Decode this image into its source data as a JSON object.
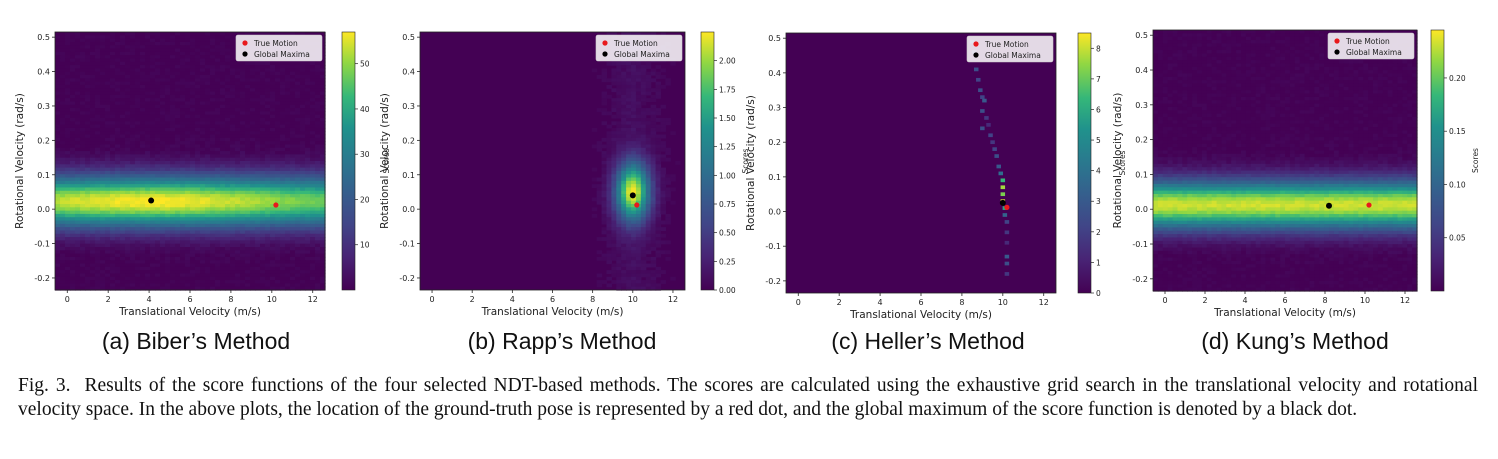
{
  "figure": {
    "number": "Fig. 3.",
    "caption": "Results of the score functions of the four selected NDT-based methods. The scores are calculated using the exhaustive grid search in the translational velocity and rotational velocity space. In the above plots, the location of the ground-truth pose is represented by a red dot, and the global maximum of the score function is denoted by a black dot."
  },
  "colors": {
    "true_motion": "#e8191c",
    "global_maxima": "#000000",
    "colormap": "viridis"
  },
  "chart_data": [
    {
      "type": "heatmap",
      "caption": "(a) Biber’s Method",
      "xlabel": "Translational Velocity (m/s)",
      "ylabel": "Rotational Velocity (rad/s)",
      "xlim": [
        -0.6,
        12.6
      ],
      "ylim": [
        -0.235,
        0.515
      ],
      "xticks": [
        0,
        2,
        4,
        6,
        8,
        10,
        12
      ],
      "yticks": [
        -0.2,
        -0.1,
        0.0,
        0.1,
        0.2,
        0.3,
        0.4,
        0.5
      ],
      "colorbar": {
        "label": "Scores",
        "min": 0,
        "max": 57,
        "ticks": [
          10,
          20,
          30,
          40,
          50
        ]
      },
      "legend": [
        "True Motion",
        "Global Maxima"
      ],
      "true_motion": {
        "x": 10.2,
        "y": 0.012
      },
      "global_maxima": {
        "x": 4.1,
        "y": 0.025
      },
      "pattern": "horizontal band of high scores centered near rotational velocity 0.02 rad/s, decaying with distance from the band"
    },
    {
      "type": "heatmap",
      "caption": "(b) Rapp’s Method",
      "xlabel": "Translational Velocity (m/s)",
      "ylabel": "Rotational Velocity (rad/s)",
      "xlim": [
        -0.6,
        12.6
      ],
      "ylim": [
        -0.235,
        0.515
      ],
      "xticks": [
        0,
        2,
        4,
        6,
        8,
        10,
        12
      ],
      "yticks": [
        -0.2,
        -0.1,
        0.0,
        0.1,
        0.2,
        0.3,
        0.4,
        0.5
      ],
      "colorbar": {
        "label": "Scores",
        "min": 0,
        "max": 2.25,
        "ticks": [
          0.0,
          0.25,
          0.5,
          0.75,
          1.0,
          1.25,
          1.5,
          1.75,
          2.0
        ]
      },
      "legend": [
        "True Motion",
        "Global Maxima"
      ],
      "true_motion": {
        "x": 10.2,
        "y": 0.012
      },
      "global_maxima": {
        "x": 10.0,
        "y": 0.04
      },
      "pattern": "narrow vertical peak near translational velocity 10 m/s and rotational velocity 0.04 rad/s"
    },
    {
      "type": "heatmap",
      "caption": "(c) Heller’s Method",
      "xlabel": "Translational Velocity (m/s)",
      "ylabel": "Rotational Velocity (rad/s)",
      "xlim": [
        -0.6,
        12.6
      ],
      "ylim": [
        -0.235,
        0.515
      ],
      "xticks": [
        0,
        2,
        4,
        6,
        8,
        10,
        12
      ],
      "yticks": [
        -0.2,
        -0.1,
        0.0,
        0.1,
        0.2,
        0.3,
        0.4,
        0.5
      ],
      "colorbar": {
        "label": "Scores",
        "min": 0,
        "max": 8.5,
        "ticks": [
          0,
          1,
          2,
          3,
          4,
          5,
          6,
          7,
          8
        ]
      },
      "legend": [
        "True Motion",
        "Global Maxima"
      ],
      "true_motion": {
        "x": 10.2,
        "y": 0.012
      },
      "global_maxima": {
        "x": 10.0,
        "y": 0.025
      },
      "pattern": "sparse thin vertical streak of cells between translational velocity 8.5 and 10.2 m/s"
    },
    {
      "type": "heatmap",
      "caption": "(d) Kung’s Method",
      "xlabel": "Translational Velocity (m/s)",
      "ylabel": "Rotational Velocity (rad/s)",
      "xlim": [
        -0.6,
        12.6
      ],
      "ylim": [
        -0.235,
        0.515
      ],
      "xticks": [
        0,
        2,
        4,
        6,
        8,
        10,
        12
      ],
      "yticks": [
        -0.2,
        -0.1,
        0.0,
        0.1,
        0.2,
        0.3,
        0.4,
        0.5
      ],
      "colorbar": {
        "label": "Scores",
        "min": 0,
        "max": 0.245,
        "ticks": [
          0.05,
          0.1,
          0.15,
          0.2
        ]
      },
      "legend": [
        "True Motion",
        "Global Maxima"
      ],
      "true_motion": {
        "x": 10.2,
        "y": 0.012
      },
      "global_maxima": {
        "x": 8.2,
        "y": 0.01
      },
      "pattern": "horizontal band of high scores centered near rotational velocity 0.01 rad/s"
    }
  ]
}
